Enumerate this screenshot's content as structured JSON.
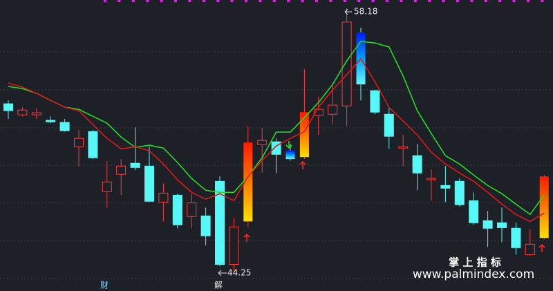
{
  "chart_data": {
    "type": "candlestick",
    "ylim": [
      43.31,
      58.62
    ],
    "up_color": "#ff3a3a",
    "down_color": "#55f7f7",
    "candles": {
      "open": [
        53.16,
        52.58,
        52.58,
        52.29,
        52.18,
        50.9,
        51.7,
        48.54,
        49.45,
        50.03,
        49.88,
        47.99,
        48.35,
        47.23,
        47.26,
        49.08,
        44.71,
        46.97,
        51.01,
        51.16,
        50.69,
        50.36,
        52.54,
        52.61,
        53.05,
        56.91,
        53.85,
        52.61,
        50.83,
        50.43,
        49.16,
        48.86,
        49.08,
        48.06,
        47.01,
        46.9,
        46.61,
        45.22,
        46.1
      ],
      "high": [
        53.34,
        52.98,
        52.91,
        52.5,
        52.36,
        51.78,
        51.78,
        50.14,
        50.25,
        51.92,
        50.9,
        48.97,
        48.43,
        48.43,
        47.7,
        49.34,
        47.16,
        51.99,
        51.89,
        51.34,
        51.05,
        54.98,
        53.52,
        54.25,
        58.18,
        57.16,
        53.89,
        52.98,
        51.52,
        51.05,
        49.7,
        49.88,
        49.23,
        48.5,
        47.52,
        47.7,
        46.9,
        46.54,
        49.41
      ],
      "low": [
        52.36,
        52.5,
        52.36,
        52.14,
        51.7,
        49.88,
        50.25,
        47.7,
        48.35,
        49.67,
        47.99,
        46.97,
        46.61,
        46.61,
        45.7,
        44.61,
        44.25,
        46.68,
        49.52,
        49.52,
        50.17,
        50.25,
        51.52,
        52.07,
        51.99,
        53.34,
        52.61,
        50.79,
        49.88,
        48.61,
        48.06,
        47.99,
        47.77,
        46.79,
        45.63,
        45.88,
        45.22,
        45.15,
        46.03
      ],
      "close": [
        52.8,
        52.83,
        52.69,
        52.21,
        51.74,
        51.34,
        50.32,
        49.05,
        49.88,
        49.81,
        48.03,
        48.46,
        46.79,
        47.95,
        46.21,
        44.71,
        46.68,
        51.12,
        51.23,
        50.5,
        50.25,
        52.72,
        52.87,
        53.09,
        57.46,
        54.18,
        52.72,
        51.45,
        50.9,
        49.52,
        49.23,
        48.72,
        47.85,
        46.9,
        46.61,
        46.64,
        45.59,
        45.77,
        49.34
      ]
    },
    "signals": {
      "up": [
        17,
        21,
        38
      ],
      "down": [
        20,
        25
      ]
    },
    "lines": [
      {
        "color": "#22dd22",
        "values": [
          54.07,
          53.96,
          53.71,
          53.34,
          52.98,
          52.87,
          52.5,
          52.14,
          51.41,
          50.87,
          50.98,
          50.83,
          50.07,
          49.23,
          48.61,
          48.5,
          48.5,
          49.34,
          50.32,
          51.67,
          51.67,
          52.43,
          53.23,
          54.18,
          55.42,
          56.44,
          56.36,
          56.15,
          54.62,
          52.8,
          51.59,
          50.43,
          49.99,
          49.41,
          48.86,
          48.43,
          47.88,
          47.34,
          48.35
        ]
      },
      {
        "color": "#e01818",
        "values": [
          54.25,
          54.03,
          53.71,
          53.34,
          52.98,
          52.8,
          52.07,
          51.34,
          50.79,
          50.9,
          50.69,
          49.99,
          49.16,
          48.5,
          48.14,
          48.43,
          48.06,
          49.34,
          50.17,
          50.94,
          51.34,
          51.7,
          52.98,
          53.89,
          54.69,
          55.53,
          54.32,
          52.98,
          52.25,
          51.52,
          50.61,
          49.99,
          49.52,
          49.08,
          48.5,
          47.88,
          47.34,
          46.97,
          47.41
        ]
      }
    ],
    "high_label": 58.18,
    "low_label": 44.25,
    "event_labels": [
      "财",
      "解"
    ],
    "watermark": [
      "掌 上 指 标",
      "www.palmindex.com"
    ]
  }
}
